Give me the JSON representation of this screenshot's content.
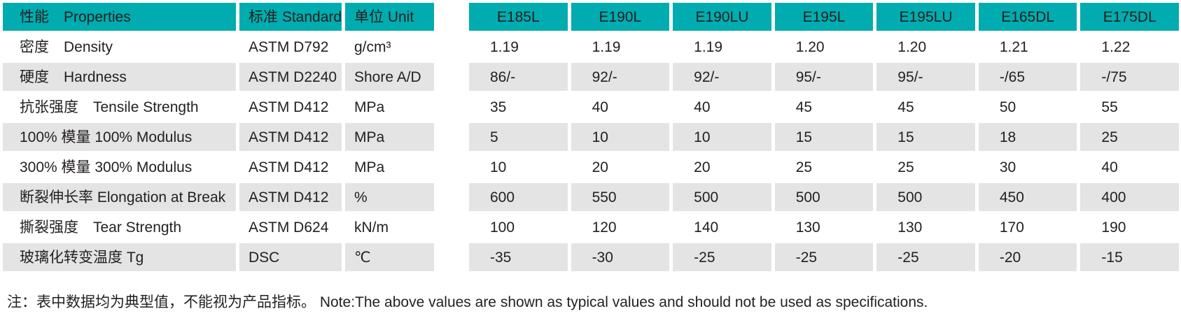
{
  "theme": {
    "header_bg": "#00ACAF",
    "row_bg": "#FFFFFF",
    "row_alt_bg": "#E4E4E5",
    "text_color": "#231F20"
  },
  "table": {
    "columns": [
      {
        "key": "properties",
        "label": "性能　Properties"
      },
      {
        "key": "standard",
        "label": "标准 Standard"
      },
      {
        "key": "unit",
        "label": "单位 Unit"
      },
      {
        "key": "e185l",
        "label": "E185L"
      },
      {
        "key": "e190l",
        "label": "E190L"
      },
      {
        "key": "e190lu",
        "label": "E190LU"
      },
      {
        "key": "e195l",
        "label": "E195L"
      },
      {
        "key": "e195lu",
        "label": "E195LU"
      },
      {
        "key": "e165dl",
        "label": "E165DL"
      },
      {
        "key": "e175dl",
        "label": "E175DL"
      }
    ],
    "rows": [
      {
        "property": "密度　Density",
        "standard": "ASTM D792",
        "unit": "g/cm³",
        "values": [
          "1.19",
          "1.19",
          "1.19",
          "1.20",
          "1.20",
          "1.21",
          "1.22"
        ]
      },
      {
        "property": "硬度　Hardness",
        "standard": "ASTM D2240",
        "unit": "Shore A/D",
        "values": [
          "86/-",
          "92/-",
          "92/-",
          "95/-",
          "95/-",
          "-/65",
          "-/75"
        ]
      },
      {
        "property": "抗张强度　Tensile Strength",
        "standard": "ASTM D412",
        "unit": "MPa",
        "values": [
          "35",
          "40",
          "40",
          "45",
          "45",
          "50",
          "55"
        ]
      },
      {
        "property": "100% 模量 100% Modulus",
        "standard": "ASTM D412",
        "unit": "MPa",
        "values": [
          "5",
          "10",
          "10",
          "15",
          "15",
          "18",
          "25"
        ]
      },
      {
        "property": "300% 模量 300% Modulus",
        "standard": "ASTM D412",
        "unit": "MPa",
        "values": [
          "10",
          "20",
          "20",
          "25",
          "25",
          "30",
          "40"
        ]
      },
      {
        "property": "断裂伸长率 Elongation at Break",
        "standard": "ASTM D412",
        "unit": "%",
        "values": [
          "600",
          "550",
          "500",
          "500",
          "500",
          "450",
          "400"
        ]
      },
      {
        "property": "撕裂强度　Tear Strength",
        "standard": "ASTM D624",
        "unit": "kN/m",
        "values": [
          "100",
          "120",
          "140",
          "130",
          "130",
          "170",
          "190"
        ]
      },
      {
        "property": "玻璃化转变温度 Tg",
        "standard": "DSC",
        "unit": "℃",
        "values": [
          "-35",
          "-30",
          "-25",
          "-25",
          "-25",
          "-20",
          "-15"
        ]
      }
    ]
  },
  "note": "注：表中数据均为典型值，不能视为产品指标。 Note:The above values are shown as typical values and should not be used as specifications."
}
